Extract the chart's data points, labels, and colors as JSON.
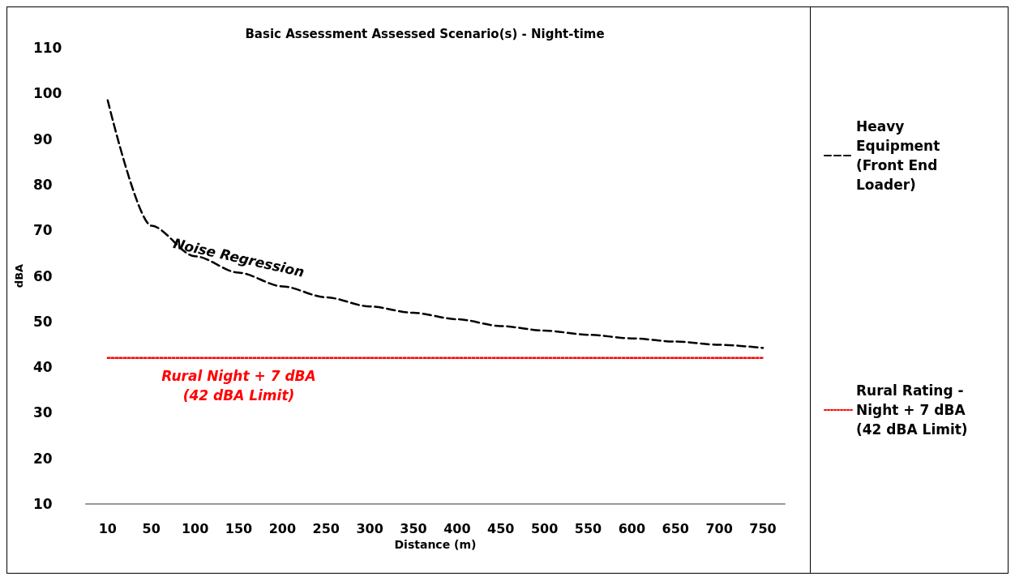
{
  "chart_data": {
    "type": "line",
    "title": "Basic Assessment Assessed Scenario(s) - Night-time",
    "xlabel": "Distance (m)",
    "ylabel": "dBA",
    "categories": [
      "10",
      "50",
      "100",
      "150",
      "200",
      "250",
      "300",
      "350",
      "400",
      "450",
      "500",
      "550",
      "600",
      "650",
      "700",
      "750"
    ],
    "series": [
      {
        "name": "Heavy Equipment (Front End Loader)",
        "color": "#000000",
        "line_style": "dashed",
        "values": [
          98.5,
          71,
          64.3,
          60.7,
          57.7,
          55.3,
          53.3,
          51.9,
          50.5,
          49.0,
          48.0,
          47.1,
          46.3,
          45.6,
          44.9,
          44.2
        ]
      },
      {
        "name": "Rural Rating - Night + 7 dBA (42 dBA Limit)",
        "color": "#ff0000",
        "line_style": "dotted",
        "values": [
          42,
          42,
          42,
          42,
          42,
          42,
          42,
          42,
          42,
          42,
          42,
          42,
          42,
          42,
          42,
          42
        ]
      }
    ],
    "annotations": [
      "Noise Regression",
      "Rural Night + 7 dBA\n(42 dBA Limit)"
    ],
    "ylim": [
      10,
      110
    ],
    "yticks": [
      10,
      20,
      30,
      40,
      50,
      60,
      70,
      80,
      90,
      100,
      110
    ],
    "grid": false,
    "legend": "right",
    "marker": "none"
  }
}
